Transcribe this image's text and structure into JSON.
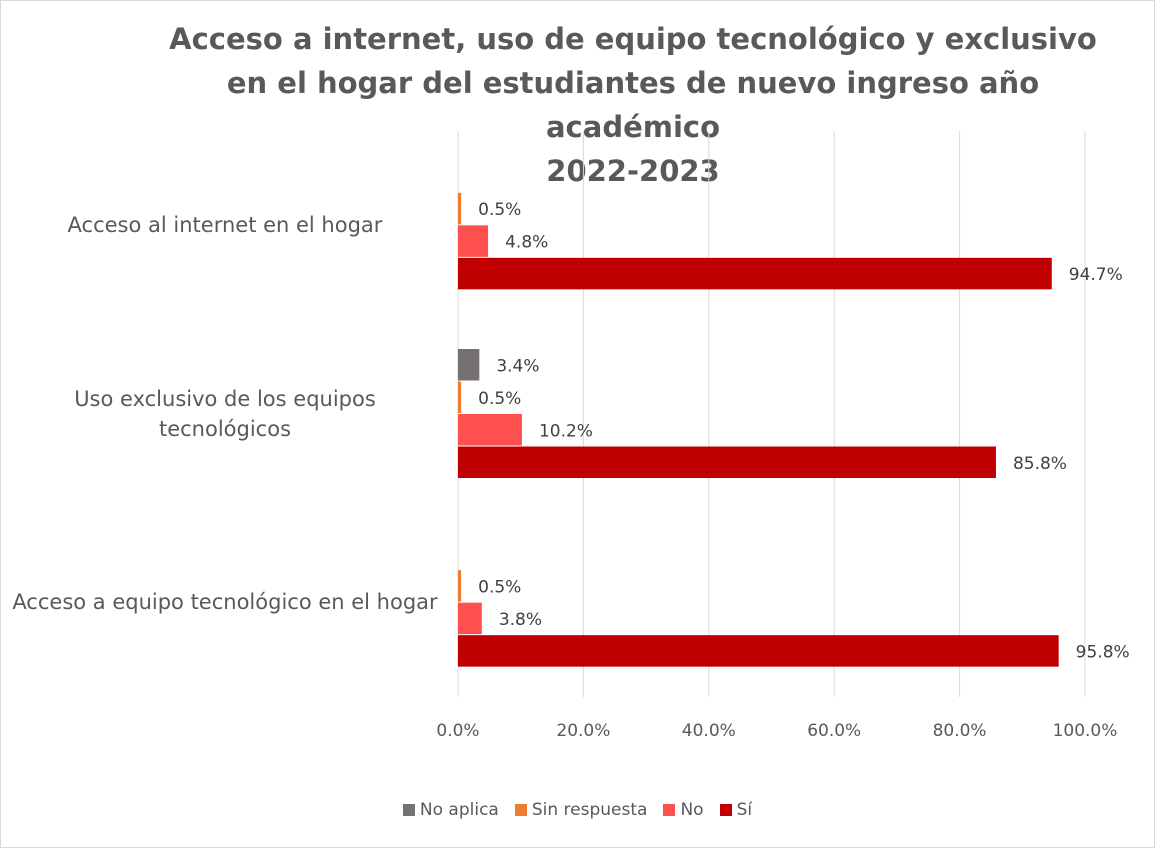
{
  "chart_data": {
    "type": "barh",
    "title": [
      "Acceso a internet, uso de equipo tecnológico y exclusivo",
      "en el hogar del estudiantes de nuevo ingreso año",
      "académico",
      "2022-2023"
    ],
    "categories": [
      "Acceso al internet en el hogar",
      "Uso exclusivo de los equipos tecnológicos",
      "Acceso a equipo tecnológico en el hogar"
    ],
    "series": [
      {
        "name": "No aplica",
        "color": "#767171",
        "values": [
          null,
          3.4,
          null
        ],
        "value_labels": [
          null,
          "3.4%",
          null
        ]
      },
      {
        "name": "Sin respuesta",
        "color": "#ED7D31",
        "values": [
          0.5,
          0.5,
          0.5
        ],
        "value_labels": [
          "0.5%",
          "0.5%",
          "0.5%"
        ]
      },
      {
        "name": "No",
        "color": "#FF5050",
        "values": [
          4.8,
          10.2,
          3.8
        ],
        "value_labels": [
          "4.8%",
          "10.2%",
          "3.8%"
        ]
      },
      {
        "name": "Sí",
        "color": "#C00000",
        "values": [
          94.7,
          85.8,
          95.8
        ],
        "value_labels": [
          "94.7%",
          "85.8%",
          "95.8%"
        ]
      }
    ],
    "xlim": [
      0,
      100
    ],
    "xticks": [
      {
        "value": 0,
        "label": "0.0%"
      },
      {
        "value": 20,
        "label": "20.0%"
      },
      {
        "value": 40,
        "label": "40.0%"
      },
      {
        "value": 60,
        "label": "60.0%"
      },
      {
        "value": 80,
        "label": "80.0%"
      },
      {
        "value": 100,
        "label": "100.0%"
      }
    ],
    "grid": true,
    "legend": "bottom"
  }
}
